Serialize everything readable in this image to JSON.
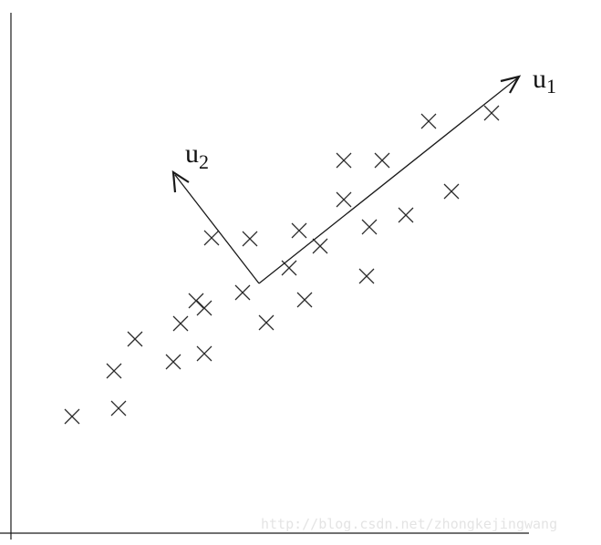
{
  "vectors": {
    "u1": {
      "label": "u",
      "subscript": "1"
    },
    "u2": {
      "label": "u",
      "subscript": "2"
    }
  },
  "watermark": "http://blog.csdn.net/zhongkejingwang"
}
